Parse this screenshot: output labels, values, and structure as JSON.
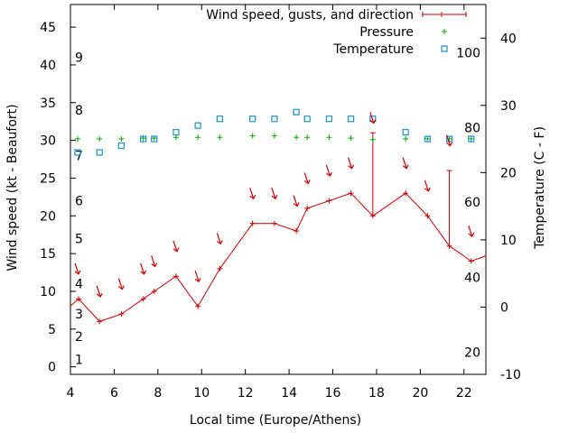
{
  "chart_data": {
    "type": "line",
    "title": "",
    "xlabel": "Local time (Europe/Athens)",
    "ylabel_left": "Wind speed (kt - Beaufort)",
    "ylabel_right": "Temperature (C - F)",
    "xlim": [
      4,
      23
    ],
    "ylim_left": [
      -1,
      48
    ],
    "ylim_right": [
      -10,
      45
    ],
    "x_ticks": [
      4,
      6,
      8,
      10,
      12,
      14,
      16,
      18,
      20,
      22
    ],
    "y_left_ticks": [
      0,
      5,
      10,
      15,
      20,
      25,
      30,
      35,
      40,
      45
    ],
    "y_right_ticks": [
      -10,
      0,
      10,
      20,
      30,
      40
    ],
    "beaufort_labels": [
      {
        "label": "1",
        "kt": 1
      },
      {
        "label": "2",
        "kt": 4
      },
      {
        "label": "3",
        "kt": 7
      },
      {
        "label": "4",
        "kt": 11
      },
      {
        "label": "5",
        "kt": 17
      },
      {
        "label": "6",
        "kt": 22
      },
      {
        "label": "7",
        "kt": 28
      },
      {
        "label": "8",
        "kt": 34
      },
      {
        "label": "9",
        "kt": 41
      }
    ],
    "fahrenheit_labels": [
      {
        "label": "20",
        "c": -6.7
      },
      {
        "label": "40",
        "c": 4.4
      },
      {
        "label": "60",
        "c": 15.6
      },
      {
        "label": "80",
        "c": 26.7
      },
      {
        "label": "100",
        "c": 37.8
      }
    ],
    "legend_position": "top-right",
    "series": [
      {
        "name": "Wind speed, gusts, and direction",
        "color": "#cc0000",
        "x": [
          3.97,
          4.37,
          5.33,
          6.33,
          7.33,
          7.83,
          8.83,
          9.83,
          10.83,
          12.33,
          13.33,
          14.33,
          14.83,
          15.83,
          16.83,
          17.83,
          19.33,
          20.33,
          21.33,
          22.33,
          23.0
        ],
        "y": [
          8,
          9,
          6,
          7,
          9,
          10,
          12,
          8,
          13,
          19,
          19,
          18,
          21,
          22,
          23,
          20,
          23,
          20,
          16,
          14,
          14.7
        ],
        "gusts": [
          {
            "x": 17.83,
            "from": 20,
            "to": 31
          },
          {
            "x": 21.33,
            "from": 16,
            "to": 26
          }
        ]
      },
      {
        "name": "Pressure",
        "color": "#00aa00",
        "x": [
          4.33,
          5.33,
          6.33,
          7.33,
          7.83,
          8.83,
          9.83,
          10.83,
          12.33,
          13.33,
          14.33,
          14.83,
          15.83,
          16.83,
          17.83,
          19.33,
          20.33,
          21.33,
          22.33
        ],
        "y": [
          30.2,
          30.2,
          30.2,
          30.3,
          30.3,
          30.4,
          30.4,
          30.4,
          30.6,
          30.6,
          30.4,
          30.4,
          30.4,
          30.3,
          30.1,
          30.2,
          30.2,
          30.2,
          30.2
        ]
      },
      {
        "name": "Temperature",
        "color": "#1e90d0",
        "x": [
          4.33,
          5.33,
          6.33,
          7.33,
          7.83,
          8.83,
          9.83,
          10.83,
          12.33,
          13.33,
          14.33,
          14.83,
          15.83,
          16.83,
          17.83,
          19.33,
          20.33,
          21.33,
          22.33
        ],
        "y": [
          23,
          23,
          24,
          25,
          25,
          26,
          27,
          28,
          28,
          28,
          29,
          28,
          28,
          28,
          28,
          26,
          25,
          25,
          25
        ]
      }
    ],
    "direction_arrows": [
      {
        "x": 4.33,
        "kt": 13
      },
      {
        "x": 5.33,
        "kt": 10
      },
      {
        "x": 6.33,
        "kt": 11
      },
      {
        "x": 7.33,
        "kt": 13
      },
      {
        "x": 7.83,
        "kt": 14
      },
      {
        "x": 8.83,
        "kt": 16
      },
      {
        "x": 9.83,
        "kt": 12
      },
      {
        "x": 10.83,
        "kt": 17
      },
      {
        "x": 12.33,
        "kt": 23
      },
      {
        "x": 13.33,
        "kt": 23
      },
      {
        "x": 14.33,
        "kt": 22
      },
      {
        "x": 14.83,
        "kt": 25
      },
      {
        "x": 15.83,
        "kt": 26
      },
      {
        "x": 16.83,
        "kt": 27
      },
      {
        "x": 17.83,
        "kt": 33
      },
      {
        "x": 19.33,
        "kt": 27
      },
      {
        "x": 20.33,
        "kt": 24
      },
      {
        "x": 21.33,
        "kt": 30
      },
      {
        "x": 22.33,
        "kt": 18
      }
    ]
  }
}
